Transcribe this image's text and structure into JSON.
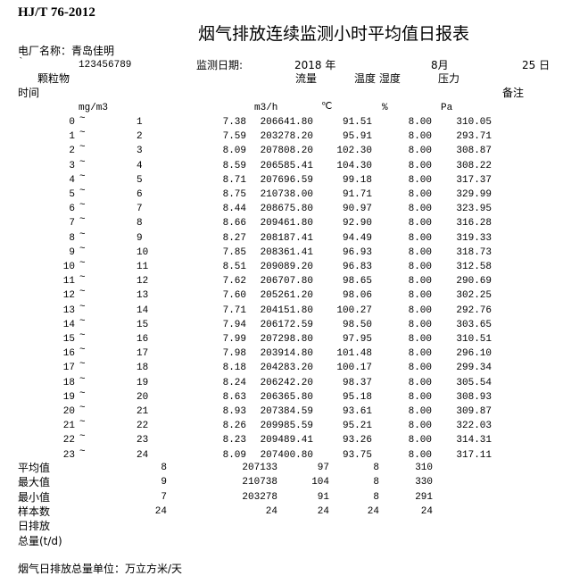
{
  "header": {
    "standard": "HJ/T 76-2012",
    "title": "烟气排放连续监测小时平均值日报表",
    "plant_label": "电厂名称：青岛佳明",
    "tick_mark": "`",
    "plant_code": "123456789",
    "date_label": "监测日期:",
    "year": "2018 年",
    "month": "8月",
    "day": "25 日"
  },
  "columns": {
    "particulate": "颗粒物",
    "flow": "流量",
    "temp_humidity": "温度 湿度",
    "pressure": "压力",
    "time": "时间",
    "remark": "备注",
    "unit_mg": "mg/m3",
    "unit_flow": "m3/h",
    "unit_temp": "℃",
    "unit_humidity": "%",
    "unit_pressure": "Pa"
  },
  "rows": [
    {
      "start": "0",
      "end": "1",
      "mg": "7.38",
      "flow": "206641.80",
      "temp": "91.51",
      "hum": "8.00",
      "pa": "310.05"
    },
    {
      "start": "1",
      "end": "2",
      "mg": "7.59",
      "flow": "203278.20",
      "temp": "95.91",
      "hum": "8.00",
      "pa": "293.71"
    },
    {
      "start": "2",
      "end": "3",
      "mg": "8.09",
      "flow": "207808.20",
      "temp": "102.30",
      "hum": "8.00",
      "pa": "308.87"
    },
    {
      "start": "3",
      "end": "4",
      "mg": "8.59",
      "flow": "206585.41",
      "temp": "104.30",
      "hum": "8.00",
      "pa": "308.22"
    },
    {
      "start": "4",
      "end": "5",
      "mg": "8.71",
      "flow": "207696.59",
      "temp": "99.18",
      "hum": "8.00",
      "pa": "317.37"
    },
    {
      "start": "5",
      "end": "6",
      "mg": "8.75",
      "flow": "210738.00",
      "temp": "91.71",
      "hum": "8.00",
      "pa": "329.99"
    },
    {
      "start": "6",
      "end": "7",
      "mg": "8.44",
      "flow": "208675.80",
      "temp": "90.97",
      "hum": "8.00",
      "pa": "323.95"
    },
    {
      "start": "7",
      "end": "8",
      "mg": "8.66",
      "flow": "209461.80",
      "temp": "92.90",
      "hum": "8.00",
      "pa": "316.28"
    },
    {
      "start": "8",
      "end": "9",
      "mg": "8.27",
      "flow": "208187.41",
      "temp": "94.49",
      "hum": "8.00",
      "pa": "319.33"
    },
    {
      "start": "9",
      "end": "10",
      "mg": "7.85",
      "flow": "208361.41",
      "temp": "96.93",
      "hum": "8.00",
      "pa": "318.73"
    },
    {
      "start": "10",
      "end": "11",
      "mg": "8.51",
      "flow": "209089.20",
      "temp": "96.83",
      "hum": "8.00",
      "pa": "312.58"
    },
    {
      "start": "11",
      "end": "12",
      "mg": "7.62",
      "flow": "206707.80",
      "temp": "98.65",
      "hum": "8.00",
      "pa": "290.69"
    },
    {
      "start": "12",
      "end": "13",
      "mg": "7.60",
      "flow": "205261.20",
      "temp": "98.06",
      "hum": "8.00",
      "pa": "302.25"
    },
    {
      "start": "13",
      "end": "14",
      "mg": "7.71",
      "flow": "204151.80",
      "temp": "100.27",
      "hum": "8.00",
      "pa": "292.76"
    },
    {
      "start": "14",
      "end": "15",
      "mg": "7.94",
      "flow": "206172.59",
      "temp": "98.50",
      "hum": "8.00",
      "pa": "303.65"
    },
    {
      "start": "15",
      "end": "16",
      "mg": "7.99",
      "flow": "207298.80",
      "temp": "97.95",
      "hum": "8.00",
      "pa": "310.51"
    },
    {
      "start": "16",
      "end": "17",
      "mg": "7.98",
      "flow": "203914.80",
      "temp": "101.48",
      "hum": "8.00",
      "pa": "296.10"
    },
    {
      "start": "17",
      "end": "18",
      "mg": "8.18",
      "flow": "204283.20",
      "temp": "100.17",
      "hum": "8.00",
      "pa": "299.34"
    },
    {
      "start": "18",
      "end": "19",
      "mg": "8.24",
      "flow": "206242.20",
      "temp": "98.37",
      "hum": "8.00",
      "pa": "305.54"
    },
    {
      "start": "19",
      "end": "20",
      "mg": "8.63",
      "flow": "206365.80",
      "temp": "95.18",
      "hum": "8.00",
      "pa": "308.93"
    },
    {
      "start": "20",
      "end": "21",
      "mg": "8.93",
      "flow": "207384.59",
      "temp": "93.61",
      "hum": "8.00",
      "pa": "309.87"
    },
    {
      "start": "21",
      "end": "22",
      "mg": "8.26",
      "flow": "209985.59",
      "temp": "95.21",
      "hum": "8.00",
      "pa": "322.03"
    },
    {
      "start": "22",
      "end": "23",
      "mg": "8.23",
      "flow": "209489.41",
      "temp": "93.26",
      "hum": "8.00",
      "pa": "314.31"
    },
    {
      "start": "23",
      "end": "24",
      "mg": "8.09",
      "flow": "207400.80",
      "temp": "93.75",
      "hum": "8.00",
      "pa": "317.11"
    }
  ],
  "separator": "~",
  "summary": [
    {
      "label": "平均值",
      "mg": "8",
      "flow": "207133",
      "temp": "97",
      "hum": "8",
      "pa": "310"
    },
    {
      "label": "最大值",
      "mg": "9",
      "flow": "210738",
      "temp": "104",
      "hum": "8",
      "pa": "330"
    },
    {
      "label": "最小值",
      "mg": "7",
      "flow": "203278",
      "temp": "91",
      "hum": "8",
      "pa": "291"
    },
    {
      "label": "样本数",
      "mg": "24",
      "flow": "24",
      "temp": "24",
      "hum": "24",
      "pa": "24"
    },
    {
      "label": "日排放"
    },
    {
      "label": "总量(t/d)"
    }
  ],
  "footer": "烟气日排放总量单位：万立方米/天"
}
